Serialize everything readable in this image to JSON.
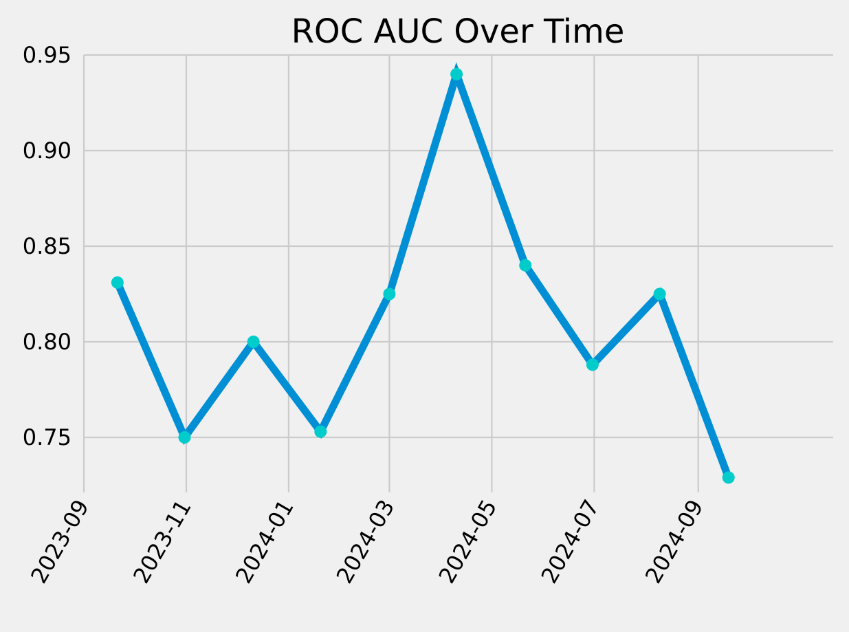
{
  "chart_data": {
    "type": "line",
    "title": "ROC AUC Over Time",
    "xlabel": "",
    "ylabel": "",
    "x_tick_labels": [
      "2023-09",
      "2023-11",
      "2024-01",
      "2024-03",
      "2024-05",
      "2024-07",
      "2024-09"
    ],
    "y_tick_labels": [
      "0.75",
      "0.80",
      "0.85",
      "0.90",
      "0.95"
    ],
    "y_ticks": [
      0.75,
      0.8,
      0.85,
      0.9,
      0.95
    ],
    "ylim": [
      0.72,
      0.95
    ],
    "grid": true,
    "series": [
      {
        "x": [
          "2023-09-21",
          "2023-10-31",
          "2023-12-11",
          "2024-01-20",
          "2024-03-01",
          "2024-04-10",
          "2024-05-21",
          "2024-06-30",
          "2024-08-09",
          "2024-09-19"
        ],
        "values": [
          0.831,
          0.75,
          0.8,
          0.753,
          0.825,
          0.94,
          0.84,
          0.788,
          0.825,
          0.729
        ],
        "line_color": "#008fd5",
        "marker_color": "#00cccc"
      }
    ]
  }
}
